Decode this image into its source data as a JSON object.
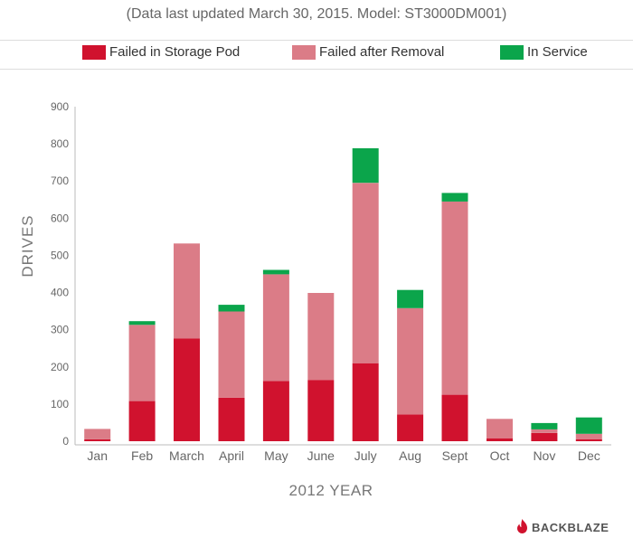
{
  "header": {
    "subtitle": "(Data last updated March 30, 2015. Model: ST3000DM001)"
  },
  "legend": [
    {
      "label": "Failed in Storage Pod",
      "color": "#d0122e"
    },
    {
      "label": "Failed after Removal",
      "color": "#db7c87"
    },
    {
      "label": "In Service",
      "color": "#0ba54b"
    }
  ],
  "brand": {
    "name": "BACKBLAZE",
    "icon": "backblaze-flame-logo",
    "color": "#d0122e"
  },
  "chart_data": {
    "type": "bar",
    "stacked": true,
    "title": "",
    "subtitle": "(Data last updated March 30, 2015. Model: ST3000DM001)",
    "xlabel": "2012 YEAR",
    "ylabel": "DRIVES",
    "ylim": [
      0,
      900
    ],
    "yticks": [
      0,
      100,
      200,
      300,
      400,
      500,
      600,
      700,
      800,
      900
    ],
    "grid": false,
    "legend_position": "top",
    "categories": [
      "Jan",
      "Feb",
      "March",
      "April",
      "May",
      "June",
      "July",
      "Aug",
      "Sept",
      "Oct",
      "Nov",
      "Dec"
    ],
    "series": [
      {
        "name": "Failed in Storage Pod",
        "color": "#d0122e",
        "values": [
          5,
          108,
          276,
          117,
          162,
          165,
          210,
          72,
          125,
          8,
          22,
          5
        ]
      },
      {
        "name": "Failed after Removal",
        "color": "#db7c87",
        "values": [
          28,
          205,
          256,
          232,
          287,
          234,
          485,
          286,
          520,
          52,
          10,
          15
        ]
      },
      {
        "name": "In Service",
        "color": "#0ba54b",
        "values": [
          0,
          10,
          0,
          18,
          12,
          0,
          93,
          49,
          23,
          0,
          17,
          44
        ]
      }
    ]
  }
}
